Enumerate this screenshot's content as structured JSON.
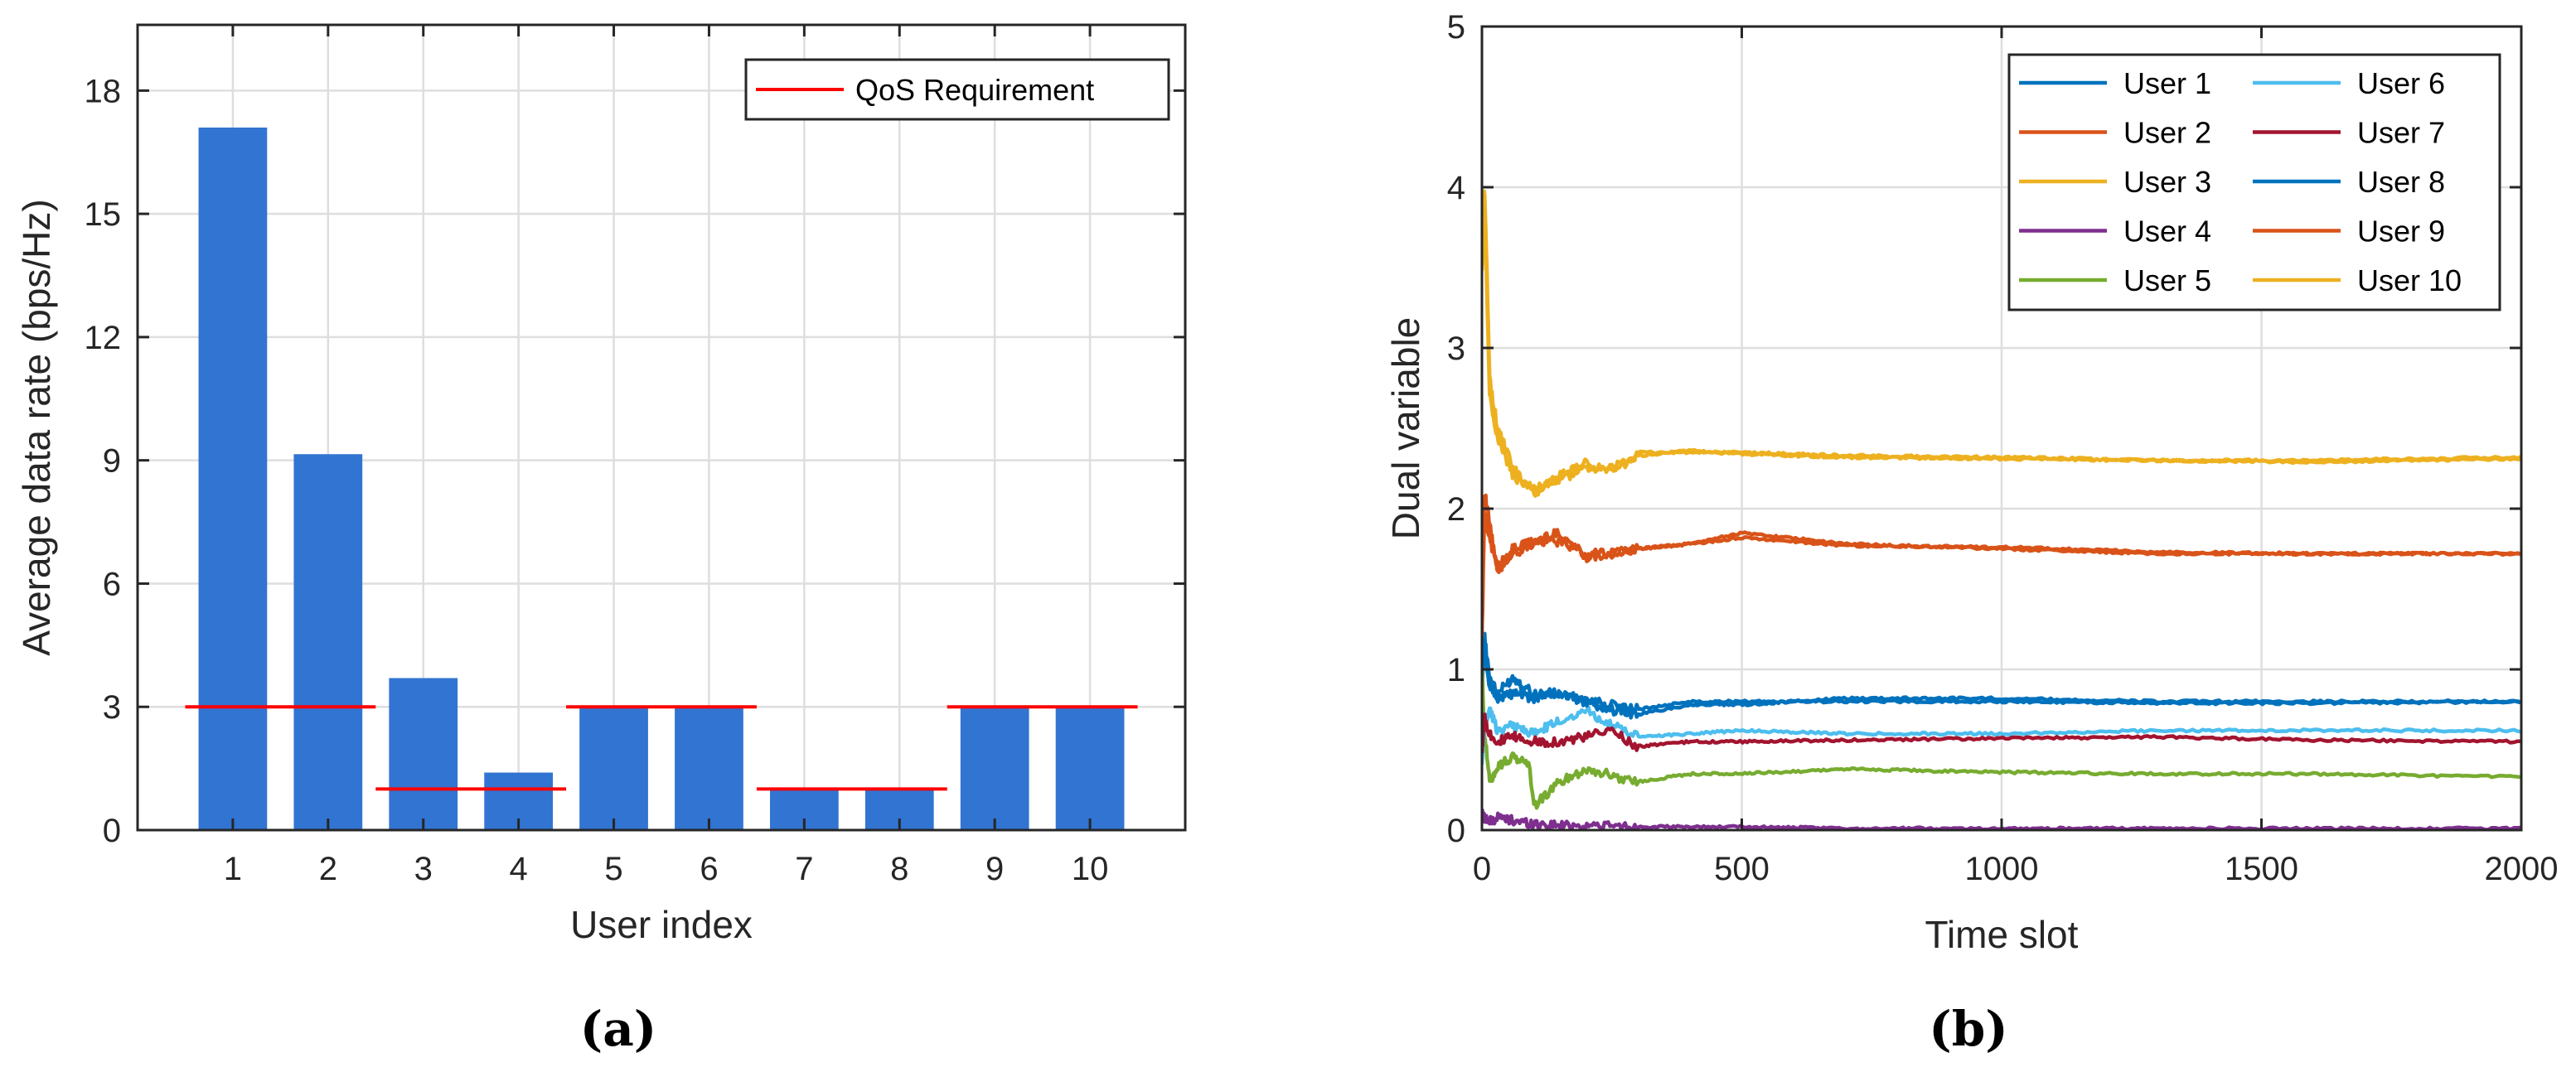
{
  "panels": {
    "a": "(a)",
    "b": "(b)"
  },
  "chart_data": [
    {
      "type": "bar",
      "panel": "(a)",
      "title": "",
      "xlabel": "User index",
      "ylabel": "Average data rate (bps/Hz)",
      "categories": [
        "1",
        "2",
        "3",
        "4",
        "5",
        "6",
        "7",
        "8",
        "9",
        "10"
      ],
      "series": [
        {
          "name": "Average data rate",
          "color": "#3274d1",
          "values": [
            17.1,
            9.15,
            3.7,
            1.4,
            3.0,
            3.0,
            1.0,
            1.0,
            3.0,
            3.0
          ]
        }
      ],
      "qos": {
        "name": "QoS Requirement",
        "color": "#ff0000",
        "values": [
          3,
          3,
          1,
          1,
          3,
          3,
          1,
          1,
          3,
          3
        ]
      },
      "ylim": [
        0,
        19.6
      ],
      "yticks": [
        0,
        3,
        6,
        9,
        12,
        15,
        18
      ],
      "ytick_labels": [
        "0",
        "3",
        "6",
        "9",
        "12",
        "15",
        "18"
      ],
      "grid": true,
      "legend": {
        "position": "top-right",
        "entries": [
          "QoS Requirement"
        ]
      }
    },
    {
      "type": "line",
      "panel": "(b)",
      "title": "",
      "xlabel": "Time slot",
      "ylabel": "Dual variable",
      "xlim": [
        0,
        2000
      ],
      "ylim": [
        0,
        5
      ],
      "xticks": [
        0,
        500,
        1000,
        1500,
        2000
      ],
      "xtick_labels": [
        "0",
        "500",
        "1000",
        "1500",
        "2000"
      ],
      "yticks": [
        0,
        1,
        2,
        3,
        4,
        5
      ],
      "ytick_labels": [
        "0",
        "1",
        "2",
        "3",
        "4",
        "5"
      ],
      "grid": true,
      "legend": {
        "position": "top-right",
        "columns": 2
      },
      "series": [
        {
          "name": "User 1",
          "color": "#0072bd",
          "x": [
            0,
            5,
            15,
            30,
            60,
            100,
            150,
            200,
            250,
            300,
            400,
            500,
            700,
            1000,
            1300,
            1600,
            2000
          ],
          "y": [
            0.9,
            1.2,
            0.95,
            0.85,
            0.95,
            0.85,
            0.85,
            0.8,
            0.75,
            0.72,
            0.78,
            0.78,
            0.82,
            0.82,
            0.8,
            0.8,
            0.8
          ]
        },
        {
          "name": "User 2",
          "color": "#d95319",
          "x": [
            0,
            5,
            15,
            30,
            60,
            100,
            150,
            200,
            250,
            300,
            400,
            500,
            700,
            1000,
            1300,
            1600,
            2000
          ],
          "y": [
            1.3,
            2.1,
            1.9,
            1.6,
            1.75,
            1.8,
            1.85,
            1.7,
            1.72,
            1.75,
            1.78,
            1.85,
            1.78,
            1.75,
            1.72,
            1.72,
            1.72
          ]
        },
        {
          "name": "User 3",
          "color": "#edb120",
          "x": [
            0,
            5,
            15,
            30,
            60,
            100,
            150,
            200,
            250,
            300,
            400,
            500,
            700,
            1000,
            1300,
            1600,
            2000
          ],
          "y": [
            3.8,
            4.0,
            2.8,
            2.5,
            2.25,
            2.1,
            2.2,
            2.28,
            2.22,
            2.35,
            2.35,
            2.35,
            2.33,
            2.32,
            2.3,
            2.3,
            2.32
          ]
        },
        {
          "name": "User 4",
          "color": "#7e2f8e",
          "x": [
            0,
            5,
            15,
            30,
            60,
            100,
            150,
            200,
            300,
            500,
            700,
            1000,
            1500,
            2000
          ],
          "y": [
            0.1,
            0.08,
            0.05,
            0.08,
            0.06,
            0.04,
            0.03,
            0.03,
            0.02,
            0.02,
            0.01,
            0.01,
            0.01,
            0.01
          ]
        },
        {
          "name": "User 5",
          "color": "#77ac30",
          "x": [
            0,
            5,
            15,
            30,
            60,
            90,
            100,
            150,
            200,
            300,
            400,
            500,
            700,
            1000,
            1300,
            1600,
            2000
          ],
          "y": [
            1.0,
            0.6,
            0.3,
            0.4,
            0.45,
            0.42,
            0.15,
            0.3,
            0.38,
            0.3,
            0.35,
            0.35,
            0.38,
            0.36,
            0.35,
            0.35,
            0.33
          ]
        },
        {
          "name": "User 6",
          "color": "#4dbeee",
          "x": [
            0,
            5,
            15,
            30,
            60,
            100,
            150,
            200,
            250,
            300,
            400,
            500,
            700,
            1000,
            1300,
            1600,
            2000
          ],
          "y": [
            0.4,
            0.65,
            0.75,
            0.62,
            0.65,
            0.6,
            0.68,
            0.75,
            0.65,
            0.58,
            0.6,
            0.62,
            0.6,
            0.6,
            0.62,
            0.62,
            0.62
          ]
        },
        {
          "name": "User 7",
          "color": "#a2142f",
          "x": [
            0,
            5,
            15,
            30,
            60,
            100,
            150,
            200,
            250,
            300,
            400,
            500,
            700,
            1000,
            1300,
            1600,
            2000
          ],
          "y": [
            0.5,
            0.7,
            0.6,
            0.55,
            0.58,
            0.55,
            0.55,
            0.58,
            0.62,
            0.52,
            0.55,
            0.55,
            0.56,
            0.57,
            0.58,
            0.56,
            0.55
          ]
        },
        {
          "name": "User 8",
          "color": "#0072bd",
          "x": [
            0,
            5,
            15,
            30,
            60,
            100,
            150,
            200,
            250,
            300,
            400,
            500,
            700,
            1000,
            1300,
            1600,
            2000
          ],
          "y": [
            1.0,
            1.1,
            0.9,
            0.82,
            0.85,
            0.82,
            0.85,
            0.8,
            0.78,
            0.75,
            0.8,
            0.8,
            0.8,
            0.8,
            0.79,
            0.79,
            0.8
          ]
        },
        {
          "name": "User 9",
          "color": "#d95319",
          "x": [
            0,
            5,
            15,
            30,
            60,
            100,
            150,
            200,
            250,
            300,
            400,
            500,
            700,
            1000,
            1300,
            1600,
            2000
          ],
          "y": [
            1.2,
            2.0,
            1.8,
            1.65,
            1.72,
            1.78,
            1.8,
            1.72,
            1.72,
            1.75,
            1.78,
            1.82,
            1.77,
            1.76,
            1.73,
            1.72,
            1.72
          ]
        },
        {
          "name": "User 10",
          "color": "#edb120",
          "x": [
            0,
            5,
            15,
            30,
            60,
            100,
            150,
            200,
            250,
            300,
            400,
            500,
            700,
            1000,
            1300,
            1600,
            2000
          ],
          "y": [
            3.5,
            3.9,
            2.7,
            2.45,
            2.2,
            2.12,
            2.18,
            2.25,
            2.25,
            2.33,
            2.36,
            2.34,
            2.32,
            2.31,
            2.3,
            2.29,
            2.31
          ]
        }
      ]
    }
  ]
}
